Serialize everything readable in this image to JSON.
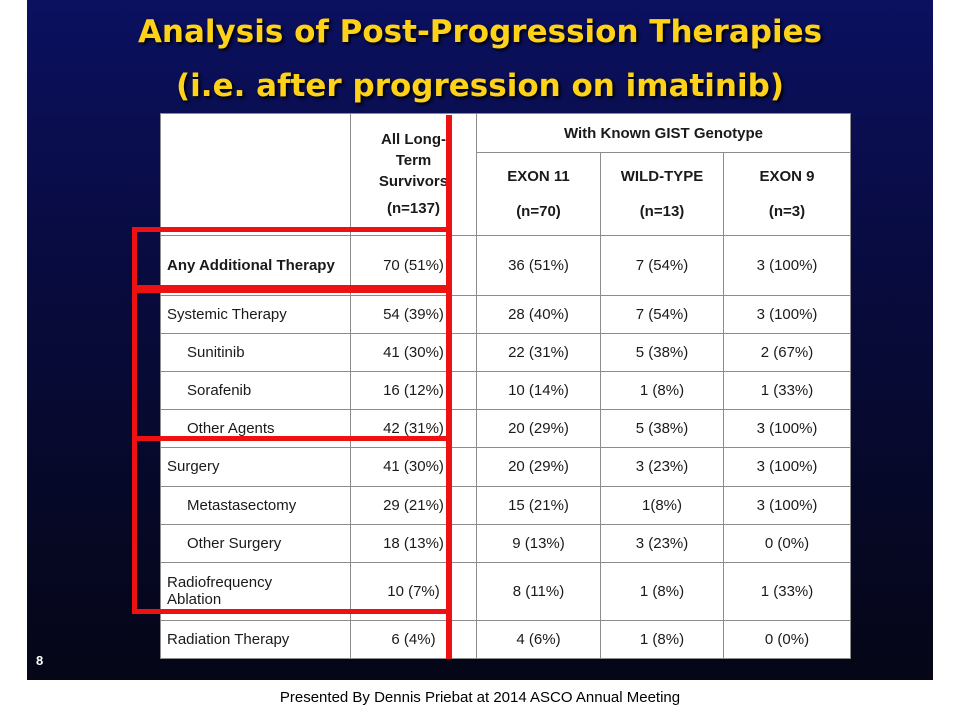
{
  "slide": {
    "title_line1": "Analysis of Post-Progression Therapies",
    "title_line2": "(i.e. after progression on imatinib)",
    "page_number": "8"
  },
  "table": {
    "group_header": "With Known GIST Genotype",
    "columns": [
      {
        "name": "All Long-Term Survivors",
        "n": "(n=137)"
      },
      {
        "name": "EXON 11",
        "n": "(n=70)"
      },
      {
        "name": "WILD-TYPE",
        "n": "(n=13)"
      },
      {
        "name": "EXON 9",
        "n": "(n=3)"
      }
    ],
    "rows": [
      {
        "label": "Any Additional Therapy",
        "values": [
          "70 (51%)",
          "36 (51%)",
          "7 (54%)",
          "3 (100%)"
        ]
      },
      {
        "label": "Systemic Therapy",
        "values": [
          "54 (39%)",
          "28 (40%)",
          "7 (54%)",
          "3 (100%)"
        ]
      },
      {
        "label": "Sunitinib",
        "values": [
          "41 (30%)",
          "22 (31%)",
          "5 (38%)",
          "2 (67%)"
        ]
      },
      {
        "label": "Sorafenib",
        "values": [
          "16 (12%)",
          "10 (14%)",
          "1 (8%)",
          "1 (33%)"
        ]
      },
      {
        "label": "Other Agents",
        "values": [
          "42 (31%)",
          "20 (29%)",
          "5 (38%)",
          "3 (100%)"
        ]
      },
      {
        "label": "Surgery",
        "values": [
          "41 (30%)",
          "20 (29%)",
          "3 (23%)",
          "3 (100%)"
        ]
      },
      {
        "label": "Metastasectomy",
        "values": [
          "29 (21%)",
          "15 (21%)",
          "1(8%)",
          "3 (100%)"
        ]
      },
      {
        "label": "Other Surgery",
        "values": [
          "18 (13%)",
          "9 (13%)",
          "3 (23%)",
          "0 (0%)"
        ]
      },
      {
        "label": "Radiofrequency Ablation",
        "values": [
          "10 (7%)",
          "8 (11%)",
          "1 (8%)",
          "1 (33%)"
        ]
      },
      {
        "label": "Radiation Therapy",
        "values": [
          "6 (4%)",
          "4 (6%)",
          "1 (8%)",
          "0 (0%)"
        ]
      }
    ]
  },
  "footer": "Presented By Dennis Priebat at 2014 ASCO Annual Meeting"
}
